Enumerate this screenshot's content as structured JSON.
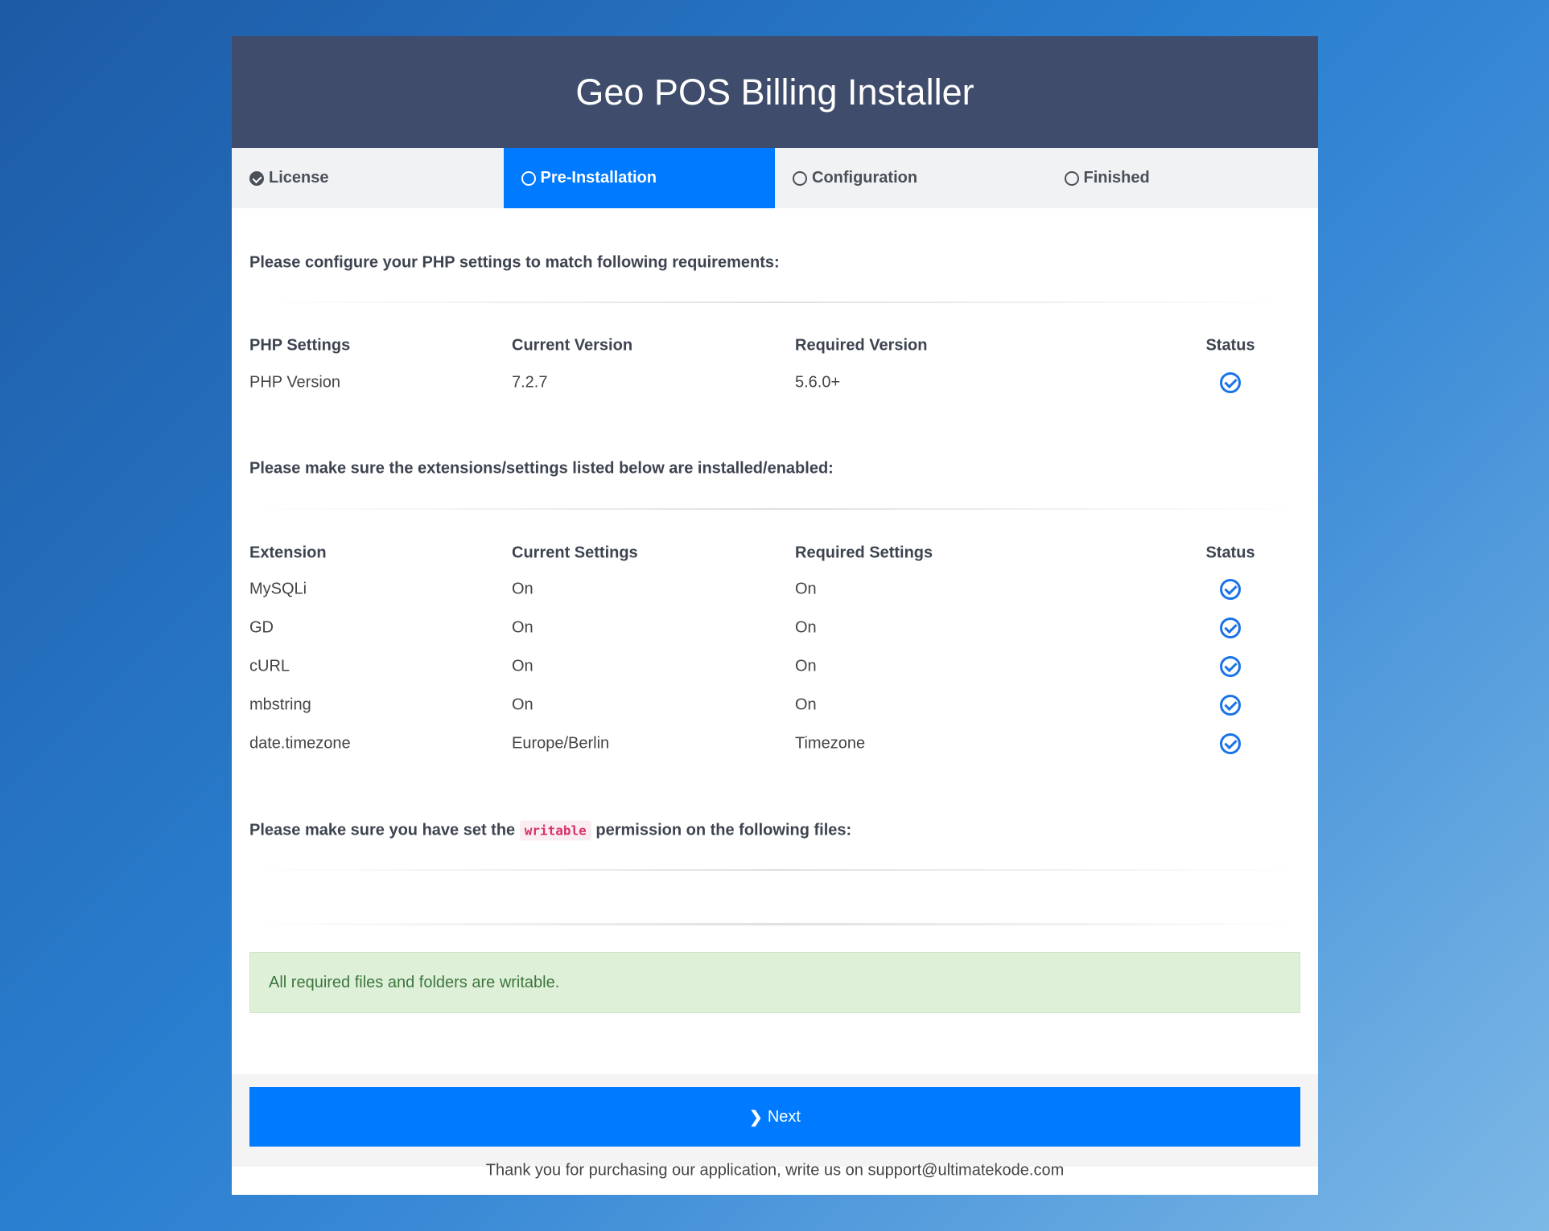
{
  "title": "Geo POS Billing Installer",
  "tabs": [
    {
      "label": "License",
      "state": "done"
    },
    {
      "label": "Pre-Installation",
      "state": "active"
    },
    {
      "label": "Configuration",
      "state": "pending"
    },
    {
      "label": "Finished",
      "state": "pending"
    }
  ],
  "php": {
    "heading": "Please configure your PHP settings to match following requirements:",
    "headers": [
      "PHP Settings",
      "Current Version",
      "Required Version",
      "Status"
    ],
    "rows": [
      {
        "name": "PHP Version",
        "current": "7.2.7",
        "required": "5.6.0+",
        "status": "ok"
      }
    ]
  },
  "ext": {
    "heading": "Please make sure the extensions/settings listed below are installed/enabled:",
    "headers": [
      "Extension",
      "Current Settings",
      "Required Settings",
      "Status"
    ],
    "rows": [
      {
        "name": "MySQLi",
        "current": "On",
        "required": "On",
        "status": "ok"
      },
      {
        "name": "GD",
        "current": "On",
        "required": "On",
        "status": "ok"
      },
      {
        "name": "cURL",
        "current": "On",
        "required": "On",
        "status": "ok"
      },
      {
        "name": "mbstring",
        "current": "On",
        "required": "On",
        "status": "ok"
      },
      {
        "name": "date.timezone",
        "current": "Europe/Berlin",
        "required": "Timezone",
        "status": "ok"
      }
    ]
  },
  "perm": {
    "pre": "Please make sure you have set the",
    "code": "writable",
    "post": "permission on the following files:"
  },
  "alert": "All required files and folders are writable.",
  "next_label": "Next",
  "footer": "Thank you for purchasing our application, write us on support@ultimatekode.com",
  "colors": {
    "header": "#3f4c6b",
    "accent": "#007bff",
    "success_bg": "#dff0d8"
  }
}
